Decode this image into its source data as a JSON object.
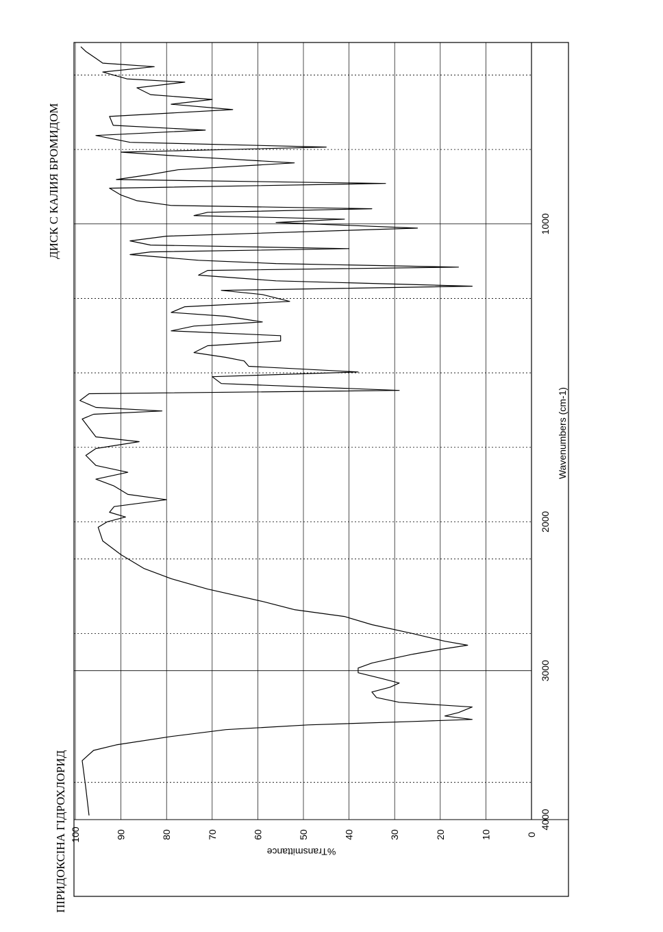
{
  "chart_data": {
    "type": "line",
    "title": "ПІРИДОКСІНА ГІДРОХЛОРИД",
    "subtitle": "ДИСК С КАЛИЯ БРОМИДОМ",
    "x_label": "Wavenumbers (cm-1)",
    "y_label": "%Transmittance",
    "xlim": [
      4000,
      400
    ],
    "x_expanded_below": 2000,
    "xticks": [
      4000,
      3000,
      2000,
      1000
    ],
    "x_minor_grid": [
      3750,
      2750,
      2250,
      1750,
      1500,
      1250,
      750,
      500
    ],
    "ylim": [
      0,
      100
    ],
    "yticks": [
      0,
      10,
      20,
      30,
      40,
      50,
      60,
      70,
      80,
      90,
      100
    ],
    "grid": true,
    "color": "#000000",
    "x": [
      3972,
      3788,
      3604,
      3535,
      3498,
      3442,
      3396,
      3364,
      3341,
      3327,
      3304,
      3281,
      3244,
      3212,
      3180,
      3143,
      3111,
      3083,
      3051,
      3014,
      2982,
      2949,
      2922,
      2889,
      2857,
      2829,
      2802,
      2751,
      2691,
      2636,
      2590,
      2535,
      2452,
      2382,
      2313,
      2221,
      2129,
      2037,
      2000,
      1984,
      1968,
      1949,
      1926,
      1908,
      1880,
      1857,
      1834,
      1811,
      1777,
      1754,
      1731,
      1715,
      1685,
      1655,
      1639,
      1628,
      1616,
      1593,
      1570,
      1559,
      1536,
      1513,
      1497,
      1478,
      1460,
      1448,
      1432,
      1409,
      1393,
      1375,
      1359,
      1343,
      1329,
      1310,
      1297,
      1278,
      1260,
      1237,
      1223,
      1209,
      1191,
      1172,
      1156,
      1145,
      1133,
      1122,
      1103,
      1094,
      1083,
      1071,
      1057,
      1041,
      1014,
      995,
      984,
      972,
      961,
      949,
      938,
      922,
      903,
      880,
      864,
      851,
      834,
      818,
      795,
      772,
      759,
      742,
      726,
      703,
      685,
      669,
      639,
      616,
      598,
      582,
      566,
      543,
      524,
      513,
      490,
      472,
      460,
      444,
      421,
      405
    ],
    "values": [
      97,
      97.7,
      98.5,
      96,
      91,
      79,
      67,
      49,
      26,
      13,
      19,
      16,
      13,
      29,
      34,
      35,
      31,
      29,
      33,
      38,
      38,
      35,
      31,
      26,
      20,
      14,
      19,
      26,
      35,
      41,
      52,
      59,
      71,
      79,
      85,
      90,
      94,
      95,
      93,
      89,
      92.5,
      91.5,
      80,
      88.5,
      91.5,
      95.5,
      88.5,
      95.5,
      97.7,
      95.5,
      86,
      95.5,
      97,
      98.5,
      96,
      81,
      95.5,
      99,
      97,
      29,
      68,
      70,
      38,
      62,
      63,
      67,
      74,
      71,
      55,
      55,
      79,
      74,
      59,
      67,
      79,
      76,
      53,
      59,
      68,
      13,
      56,
      73,
      71,
      16,
      56,
      73,
      88,
      83.5,
      40,
      83.5,
      88,
      80,
      25,
      56,
      41,
      74,
      71,
      35,
      79,
      86.5,
      90,
      92.5,
      32,
      91,
      83.5,
      77.5,
      52,
      77.5,
      90,
      45,
      88,
      95.5,
      71.5,
      91.7,
      92.5,
      65.5,
      79,
      70,
      83.5,
      86.5,
      76,
      88.7,
      94,
      82.7,
      94,
      95.5,
      97.7,
      98.8
    ]
  }
}
